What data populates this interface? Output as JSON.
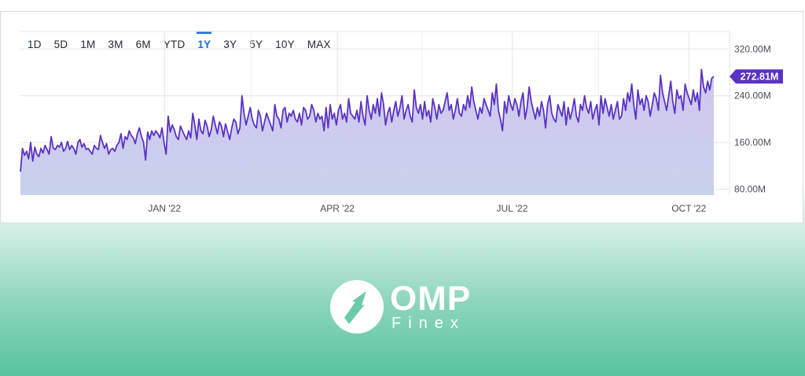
{
  "range_tabs": [
    "1D",
    "5D",
    "1M",
    "3M",
    "6M",
    "YTD",
    "1Y",
    "3Y",
    "5Y",
    "10Y",
    "MAX"
  ],
  "active_range": "1Y",
  "brand": {
    "name": "OMP",
    "sub": "Finex"
  },
  "colors": {
    "line": "#5a33c4",
    "fill_top": "#cfc3ef",
    "fill_bottom": "#c3cdea",
    "badge": "#5a33c4",
    "active_tab": "#1a6ed8"
  },
  "chart_data": {
    "type": "area",
    "title": "",
    "xlabel": "",
    "ylabel": "",
    "ylim": [
      70,
      350
    ],
    "yticks": [
      {
        "value": 320,
        "label": "320.00M"
      },
      {
        "value": 240,
        "label": "240.00M"
      },
      {
        "value": 160,
        "label": "160.00M"
      },
      {
        "value": 80,
        "label": "80.00M"
      }
    ],
    "xticks": [
      "JAN '22",
      "APR '22",
      "JUL '22",
      "OCT '22"
    ],
    "x_start": "2021-10-18",
    "x_end": "2022-10-14",
    "last_value_label": "272.81M",
    "grid": true,
    "series": [
      {
        "values": [
          110,
          150,
          138,
          145,
          132,
          160,
          128,
          152,
          140,
          136,
          150,
          142,
          155,
          148,
          140,
          170,
          150,
          148,
          155,
          152,
          160,
          145,
          150,
          162,
          148,
          155,
          150,
          140,
          160,
          165,
          152,
          158,
          148,
          150,
          145,
          140,
          155,
          150,
          148,
          172,
          160,
          150,
          158,
          140,
          148,
          150,
          145,
          155,
          160,
          175,
          150,
          170,
          165,
          180,
          172,
          168,
          158,
          175,
          185,
          170,
          160,
          130,
          178,
          165,
          180,
          172,
          180,
          175,
          168,
          185,
          160,
          140,
          205,
          178,
          190,
          182,
          170,
          165,
          188,
          180,
          172,
          165,
          180,
          168,
          210,
          190,
          165,
          200,
          180,
          175,
          198,
          188,
          170,
          182,
          205,
          190,
          175,
          195,
          188,
          170,
          192,
          178,
          165,
          185,
          200,
          195,
          175,
          185,
          240,
          210,
          190,
          205,
          220,
          200,
          190,
          185,
          215,
          205,
          180,
          195,
          210,
          200,
          190,
          180,
          225,
          205,
          200,
          185,
          215,
          220,
          195,
          210,
          205,
          215,
          200,
          195,
          210,
          190,
          220,
          215,
          200,
          205,
          225,
          215,
          195,
          210,
          200,
          205,
          180,
          220,
          185,
          225,
          200,
          210,
          190,
          215,
          225,
          200,
          210,
          195,
          235,
          210,
          205,
          200,
          215,
          195,
          230,
          205,
          190,
          240,
          215,
          200,
          225,
          210,
          235,
          205,
          245,
          225,
          190,
          210,
          220,
          195,
          215,
          230,
          205,
          220,
          240,
          200,
          215,
          225,
          205,
          195,
          250,
          220,
          210,
          225,
          200,
          230,
          205,
          215,
          195,
          235,
          220,
          200,
          225,
          210,
          215,
          230,
          245,
          215,
          225,
          200,
          215,
          235,
          210,
          205,
          225,
          215,
          240,
          220,
          255,
          230,
          215,
          200,
          220,
          210,
          235,
          225,
          215,
          205,
          245,
          225,
          260,
          215,
          200,
          180,
          230,
          210,
          240,
          225,
          215,
          235,
          225,
          205,
          230,
          245,
          200,
          220,
          255,
          230,
          215,
          200,
          220,
          205,
          230,
          215,
          185,
          225,
          240,
          210,
          200,
          195,
          225,
          215,
          205,
          230,
          190,
          220,
          200,
          215,
          235,
          205,
          195,
          225,
          215,
          240,
          220,
          210,
          230,
          200,
          215,
          225,
          190,
          240,
          210,
          235,
          220,
          205,
          225,
          200,
          215,
          230,
          200,
          205,
          235,
          215,
          245,
          230,
          260,
          225,
          200,
          250,
          225,
          235,
          215,
          240,
          230,
          205,
          225,
          245,
          235,
          215,
          275,
          245,
          230,
          215,
          240,
          265,
          230,
          210,
          250,
          235,
          240,
          215,
          260,
          245,
          235,
          225,
          250,
          230,
          245,
          215,
          285,
          255,
          245,
          265,
          250,
          270,
          273
        ]
      }
    ]
  }
}
